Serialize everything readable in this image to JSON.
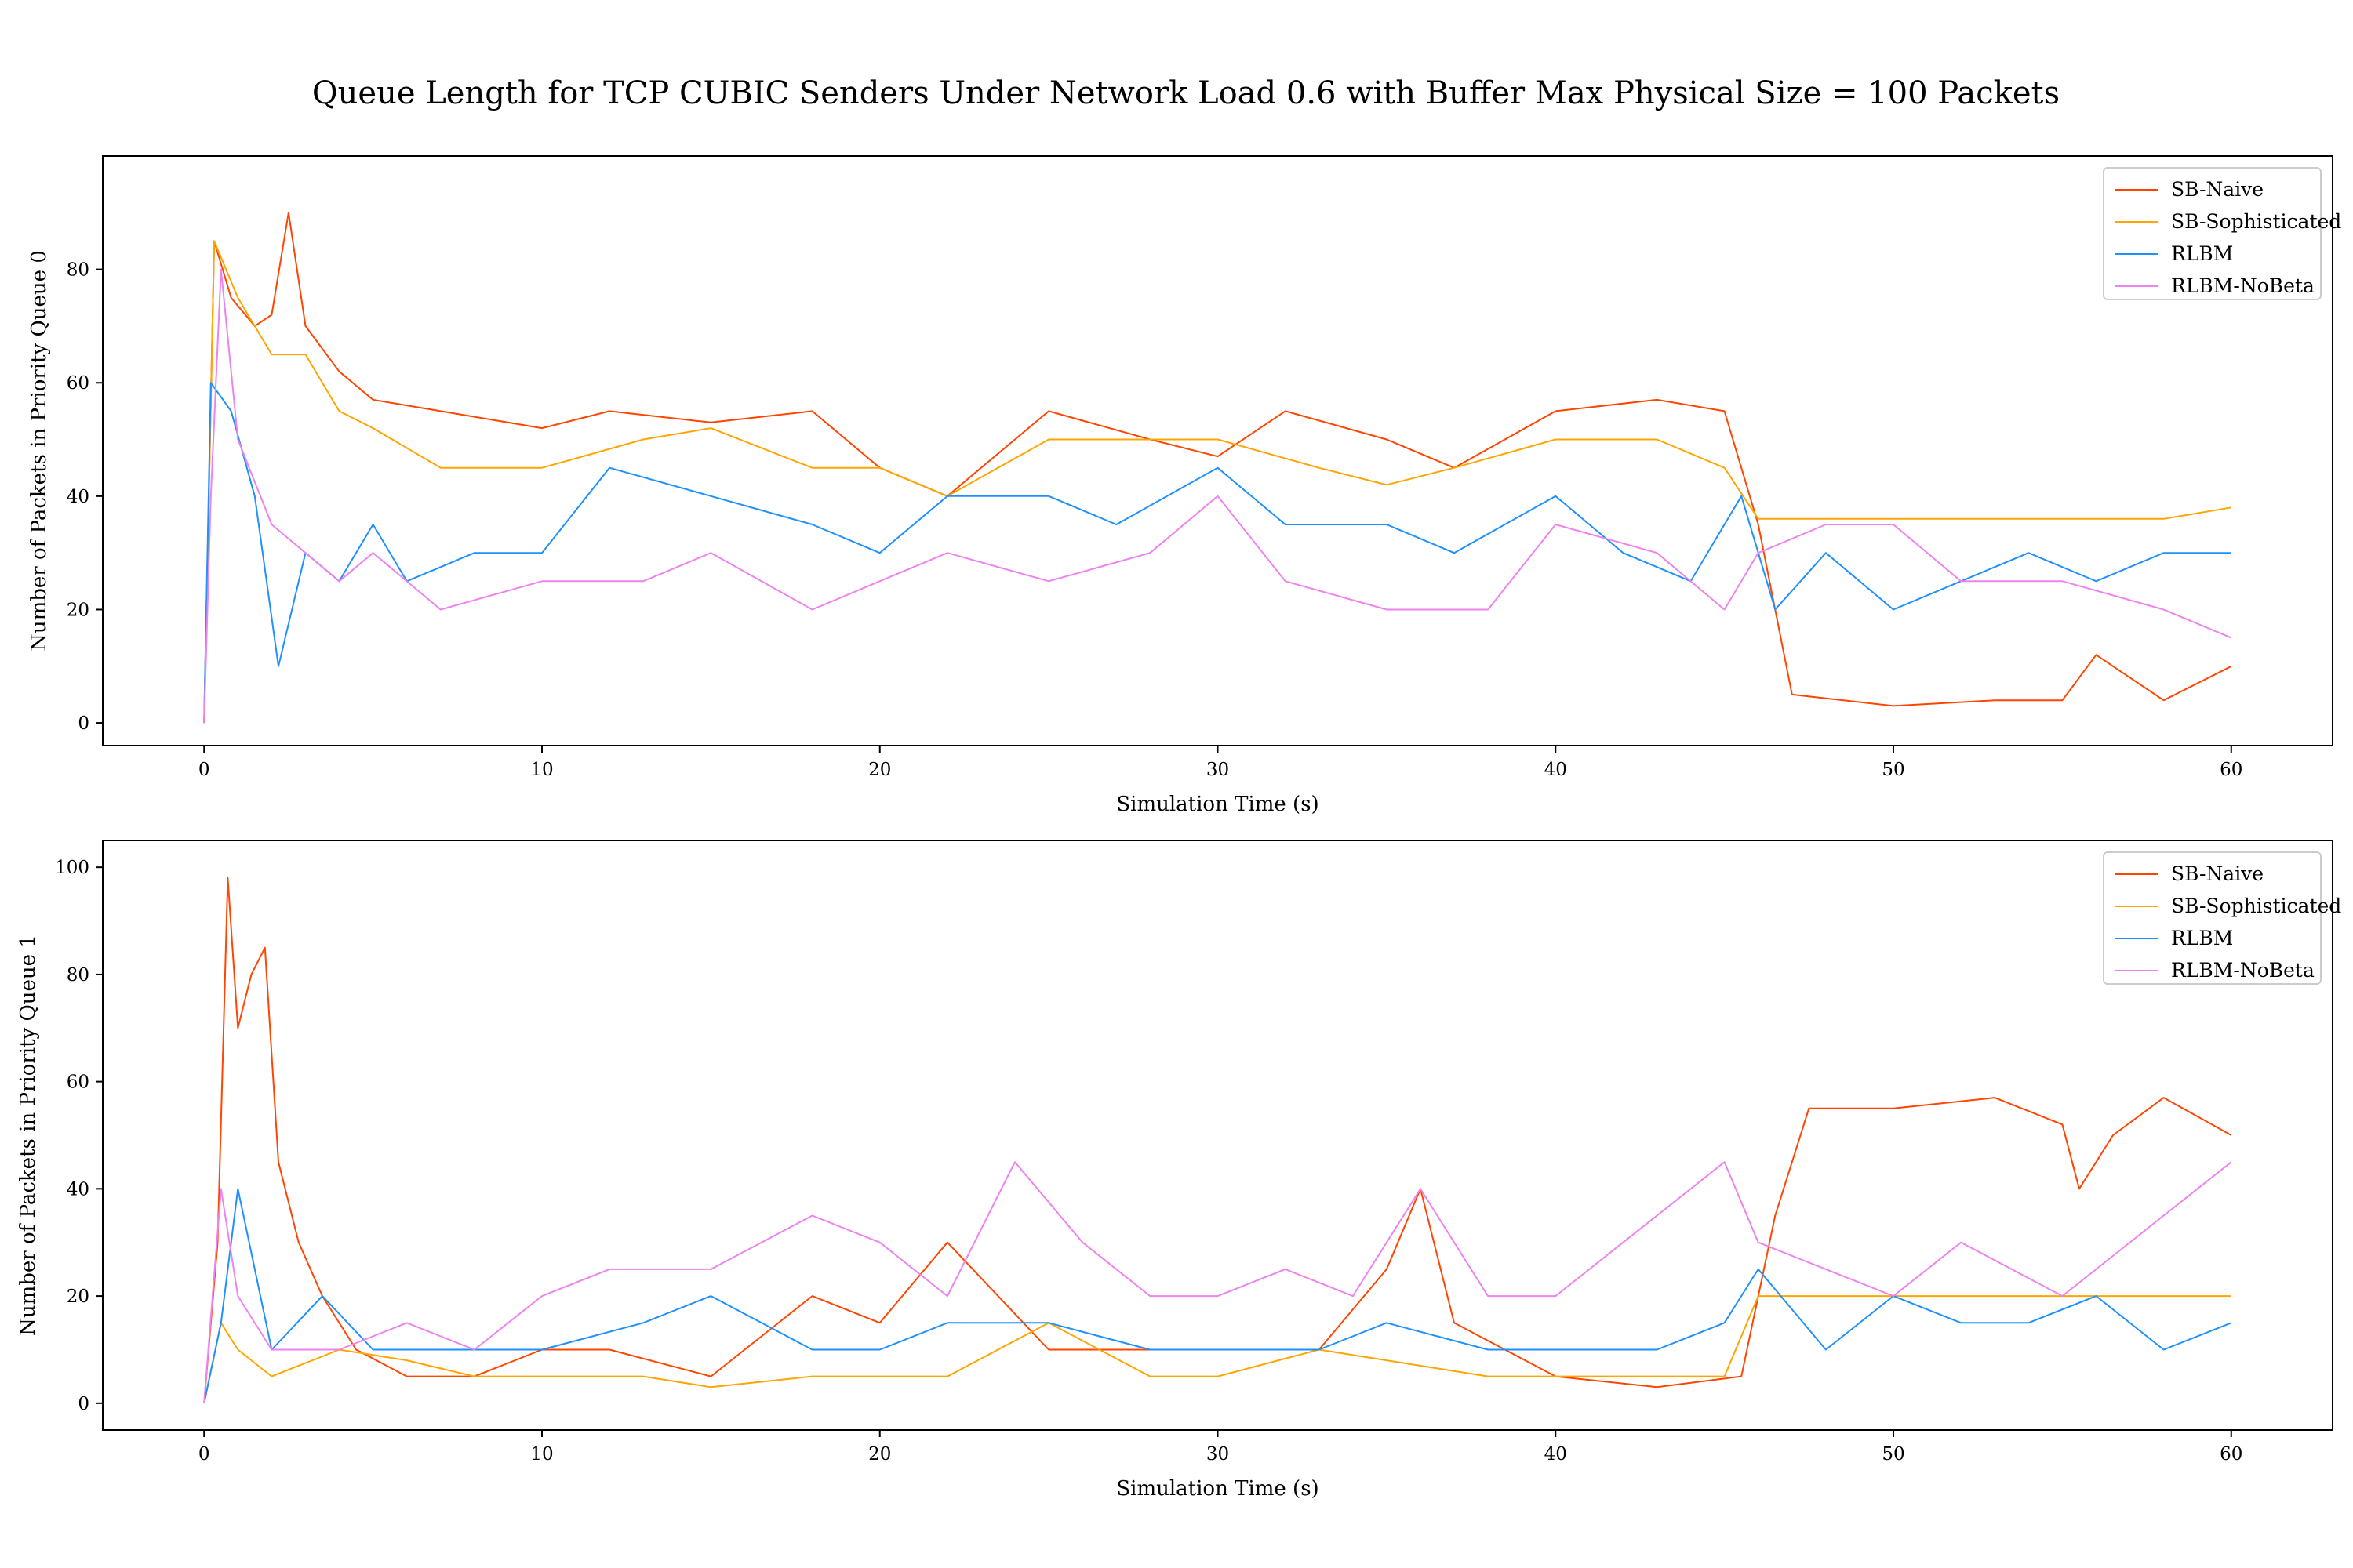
{
  "figure": {
    "title": "Queue Length for TCP CUBIC Senders Under Network Load 0.6 with Buffer Max Physical Size = 100 Packets"
  },
  "colors": {
    "SB-Naive": "#ff4500",
    "SB-Sophisticated": "#ffa500",
    "RLBM": "#1e90ff",
    "RLBM-NoBeta": "#ee82ee"
  },
  "chart_data": [
    {
      "type": "line",
      "xlabel": "Simulation Time (s)",
      "ylabel": "Number of Packets in Priority Queue 0",
      "xlim": [
        -3,
        63
      ],
      "ylim": [
        -4,
        100
      ],
      "xticks": [
        0,
        10,
        20,
        30,
        40,
        50,
        60
      ],
      "yticks": [
        0,
        20,
        40,
        60,
        80
      ],
      "grid": false,
      "legend": "top-right",
      "series": [
        {
          "name": "SB-Naive",
          "x": [
            0,
            0.3,
            0.8,
            1.5,
            2.0,
            2.5,
            3.0,
            4.0,
            5.0,
            7.0,
            10.0,
            12.0,
            15.0,
            18.0,
            20.0,
            22.0,
            25.0,
            28.0,
            30.0,
            32.0,
            35.0,
            37.0,
            40.0,
            43.0,
            45.0,
            46.0,
            47.0,
            50.0,
            53.0,
            55.0,
            56.0,
            58.0,
            60.0
          ],
          "y": [
            0,
            85,
            75,
            70,
            72,
            90,
            70,
            62,
            57,
            55,
            52,
            55,
            53,
            55,
            45,
            40,
            55,
            50,
            47,
            55,
            50,
            45,
            55,
            57,
            55,
            35,
            5,
            3,
            4,
            4,
            12,
            4,
            10
          ]
        },
        {
          "name": "SB-Sophisticated",
          "x": [
            0,
            0.3,
            1.0,
            2.0,
            3.0,
            4.0,
            5.0,
            7.0,
            10.0,
            13.0,
            15.0,
            18.0,
            20.0,
            22.0,
            25.0,
            28.0,
            30.0,
            33.0,
            35.0,
            37.0,
            40.0,
            43.0,
            45.0,
            46.0,
            48.0,
            50.0,
            52.0,
            54.0,
            56.0,
            58.0,
            60.0
          ],
          "y": [
            0,
            85,
            75,
            65,
            65,
            55,
            52,
            45,
            45,
            50,
            52,
            45,
            45,
            40,
            50,
            50,
            50,
            45,
            42,
            45,
            50,
            50,
            45,
            36,
            36,
            36,
            36,
            36,
            36,
            36,
            38
          ]
        },
        {
          "name": "RLBM",
          "x": [
            0,
            0.2,
            0.8,
            1.5,
            2.2,
            3.0,
            4.0,
            5.0,
            6.0,
            8.0,
            10.0,
            12.0,
            15.0,
            18.0,
            20.0,
            22.0,
            25.0,
            27.0,
            30.0,
            32.0,
            35.0,
            37.0,
            40.0,
            42.0,
            44.0,
            45.5,
            46.5,
            48.0,
            50.0,
            52.0,
            54.0,
            56.0,
            58.0,
            60.0
          ],
          "y": [
            0,
            60,
            55,
            40,
            10,
            30,
            25,
            35,
            25,
            30,
            30,
            45,
            40,
            35,
            30,
            40,
            40,
            35,
            45,
            35,
            35,
            30,
            40,
            30,
            25,
            40,
            20,
            30,
            20,
            25,
            30,
            25,
            30,
            30
          ]
        },
        {
          "name": "RLBM-NoBeta",
          "x": [
            0,
            0.2,
            0.5,
            1.0,
            2.0,
            3.0,
            4.0,
            5.0,
            7.0,
            10.0,
            13.0,
            15.0,
            18.0,
            20.0,
            22.0,
            25.0,
            28.0,
            30.0,
            32.0,
            35.0,
            38.0,
            40.0,
            43.0,
            45.0,
            46.0,
            48.0,
            50.0,
            52.0,
            55.0,
            58.0,
            60.0
          ],
          "y": [
            0,
            40,
            80,
            50,
            35,
            30,
            25,
            30,
            20,
            25,
            25,
            30,
            20,
            25,
            30,
            25,
            30,
            40,
            25,
            20,
            20,
            35,
            30,
            20,
            30,
            35,
            35,
            25,
            25,
            20,
            15
          ]
        }
      ]
    },
    {
      "type": "line",
      "xlabel": "Simulation Time (s)",
      "ylabel": "Number of Packets in Priority Queue 1",
      "xlim": [
        -3,
        63
      ],
      "ylim": [
        -5,
        105
      ],
      "xticks": [
        0,
        10,
        20,
        30,
        40,
        50,
        60
      ],
      "yticks": [
        0,
        20,
        40,
        60,
        80,
        100
      ],
      "grid": false,
      "legend": "top-right",
      "series": [
        {
          "name": "SB-Naive",
          "x": [
            0,
            0.4,
            0.7,
            1.0,
            1.4,
            1.8,
            2.2,
            2.8,
            3.5,
            4.5,
            6.0,
            8.0,
            10.0,
            12.0,
            15.0,
            18.0,
            20.0,
            22.0,
            25.0,
            28.0,
            30.0,
            33.0,
            35.0,
            36.0,
            37.0,
            40.0,
            43.0,
            45.5,
            46.5,
            47.5,
            50.0,
            53.0,
            55.0,
            55.5,
            56.5,
            58.0,
            60.0
          ],
          "y": [
            0,
            30,
            98,
            70,
            80,
            85,
            45,
            30,
            20,
            10,
            5,
            5,
            10,
            10,
            5,
            20,
            15,
            30,
            10,
            10,
            10,
            10,
            25,
            40,
            15,
            5,
            3,
            5,
            35,
            55,
            55,
            57,
            52,
            40,
            50,
            57,
            50
          ]
        },
        {
          "name": "SB-Sophisticated",
          "x": [
            0,
            0.5,
            1.0,
            2.0,
            4.0,
            6.0,
            8.0,
            10.0,
            13.0,
            15.0,
            18.0,
            20.0,
            22.0,
            25.0,
            28.0,
            30.0,
            33.0,
            35.0,
            38.0,
            40.0,
            43.0,
            45.0,
            46.0,
            48.0,
            50.0,
            53.0,
            55.0,
            58.0,
            60.0
          ],
          "y": [
            0,
            15,
            10,
            5,
            10,
            8,
            5,
            5,
            5,
            3,
            5,
            5,
            5,
            15,
            5,
            5,
            10,
            8,
            5,
            5,
            5,
            5,
            20,
            20,
            20,
            20,
            20,
            20,
            20
          ]
        },
        {
          "name": "RLBM",
          "x": [
            0,
            0.5,
            1.0,
            2.0,
            3.5,
            5.0,
            7.0,
            10.0,
            13.0,
            15.0,
            18.0,
            20.0,
            22.0,
            25.0,
            28.0,
            30.0,
            33.0,
            35.0,
            38.0,
            40.0,
            43.0,
            45.0,
            46.0,
            48.0,
            50.0,
            52.0,
            54.0,
            56.0,
            58.0,
            60.0
          ],
          "y": [
            0,
            15,
            40,
            10,
            20,
            10,
            10,
            10,
            15,
            20,
            10,
            10,
            15,
            15,
            10,
            10,
            10,
            15,
            10,
            10,
            10,
            15,
            25,
            10,
            20,
            15,
            15,
            20,
            10,
            15
          ]
        },
        {
          "name": "RLBM-NoBeta",
          "x": [
            0,
            0.5,
            1.0,
            2.0,
            4.0,
            6.0,
            8.0,
            10.0,
            12.0,
            15.0,
            18.0,
            20.0,
            22.0,
            24.0,
            26.0,
            28.0,
            30.0,
            32.0,
            34.0,
            36.0,
            38.0,
            40.0,
            42.0,
            44.0,
            45.0,
            46.0,
            48.0,
            50.0,
            52.0,
            55.0,
            58.0,
            60.0
          ],
          "y": [
            0,
            40,
            20,
            10,
            10,
            15,
            10,
            20,
            25,
            25,
            35,
            30,
            20,
            45,
            30,
            20,
            20,
            25,
            20,
            40,
            20,
            20,
            30,
            40,
            45,
            30,
            25,
            20,
            30,
            20,
            35,
            45
          ]
        }
      ]
    }
  ]
}
